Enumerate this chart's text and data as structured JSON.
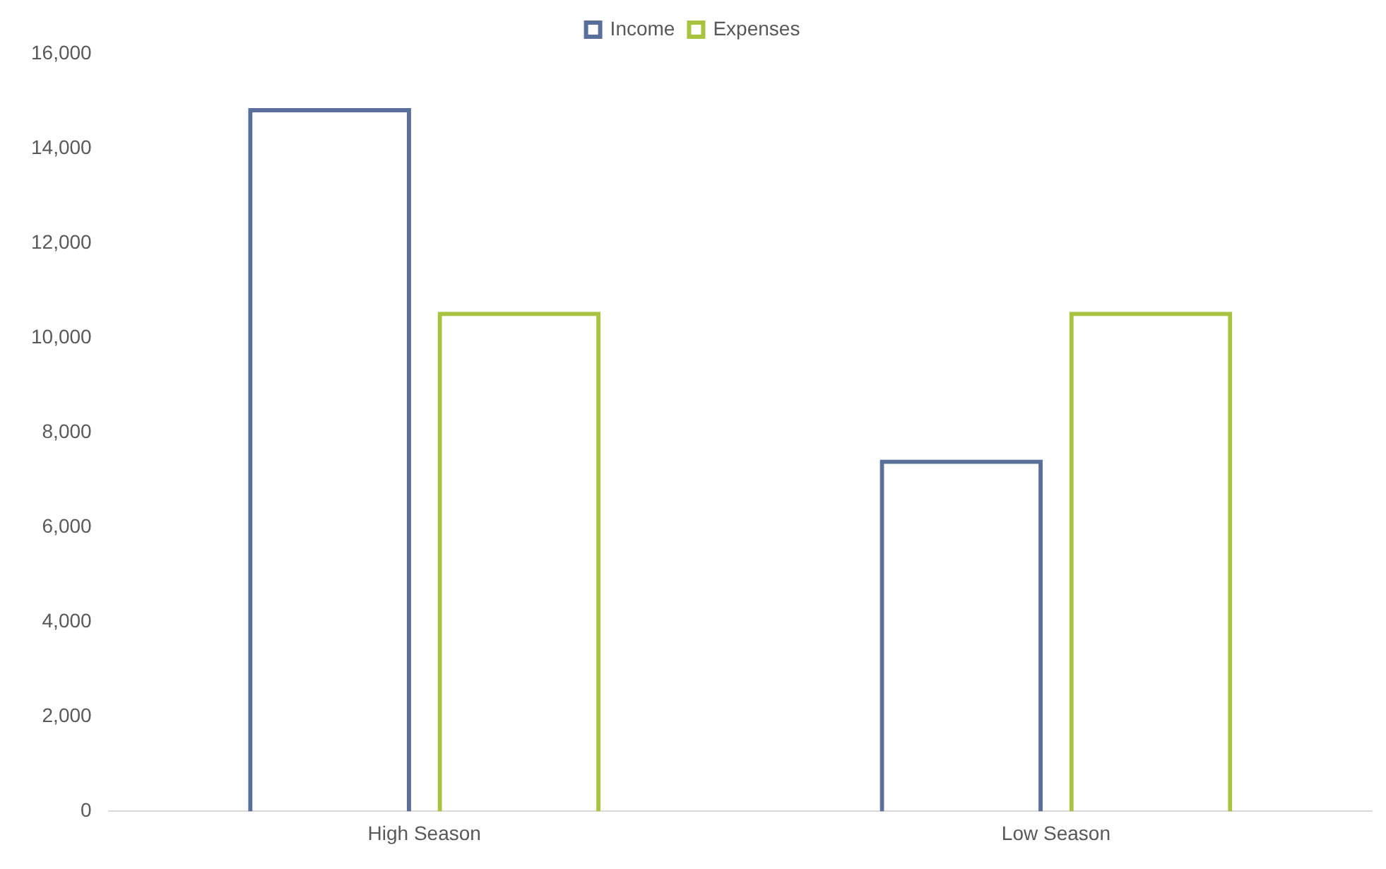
{
  "chart_data": {
    "type": "bar",
    "categories": [
      "High Season",
      "Low Season"
    ],
    "series": [
      {
        "name": "Income",
        "color": "#5b6f9b",
        "values": [
          14850,
          7430
        ]
      },
      {
        "name": "Expenses",
        "color": "#a9c23f",
        "values": [
          10550,
          10550
        ]
      }
    ],
    "ylim": [
      0,
      16000
    ],
    "yticks": [
      {
        "value": 0,
        "label": "0"
      },
      {
        "value": 2000,
        "label": "2,000"
      },
      {
        "value": 4000,
        "label": "4,000"
      },
      {
        "value": 6000,
        "label": "6,000"
      },
      {
        "value": 8000,
        "label": "8,000"
      },
      {
        "value": 10000,
        "label": "10,000"
      },
      {
        "value": 12000,
        "label": "12,000"
      },
      {
        "value": 14000,
        "label": "14,000"
      },
      {
        "value": 16000,
        "label": "16,000"
      }
    ],
    "grid": false,
    "legend": "top"
  }
}
